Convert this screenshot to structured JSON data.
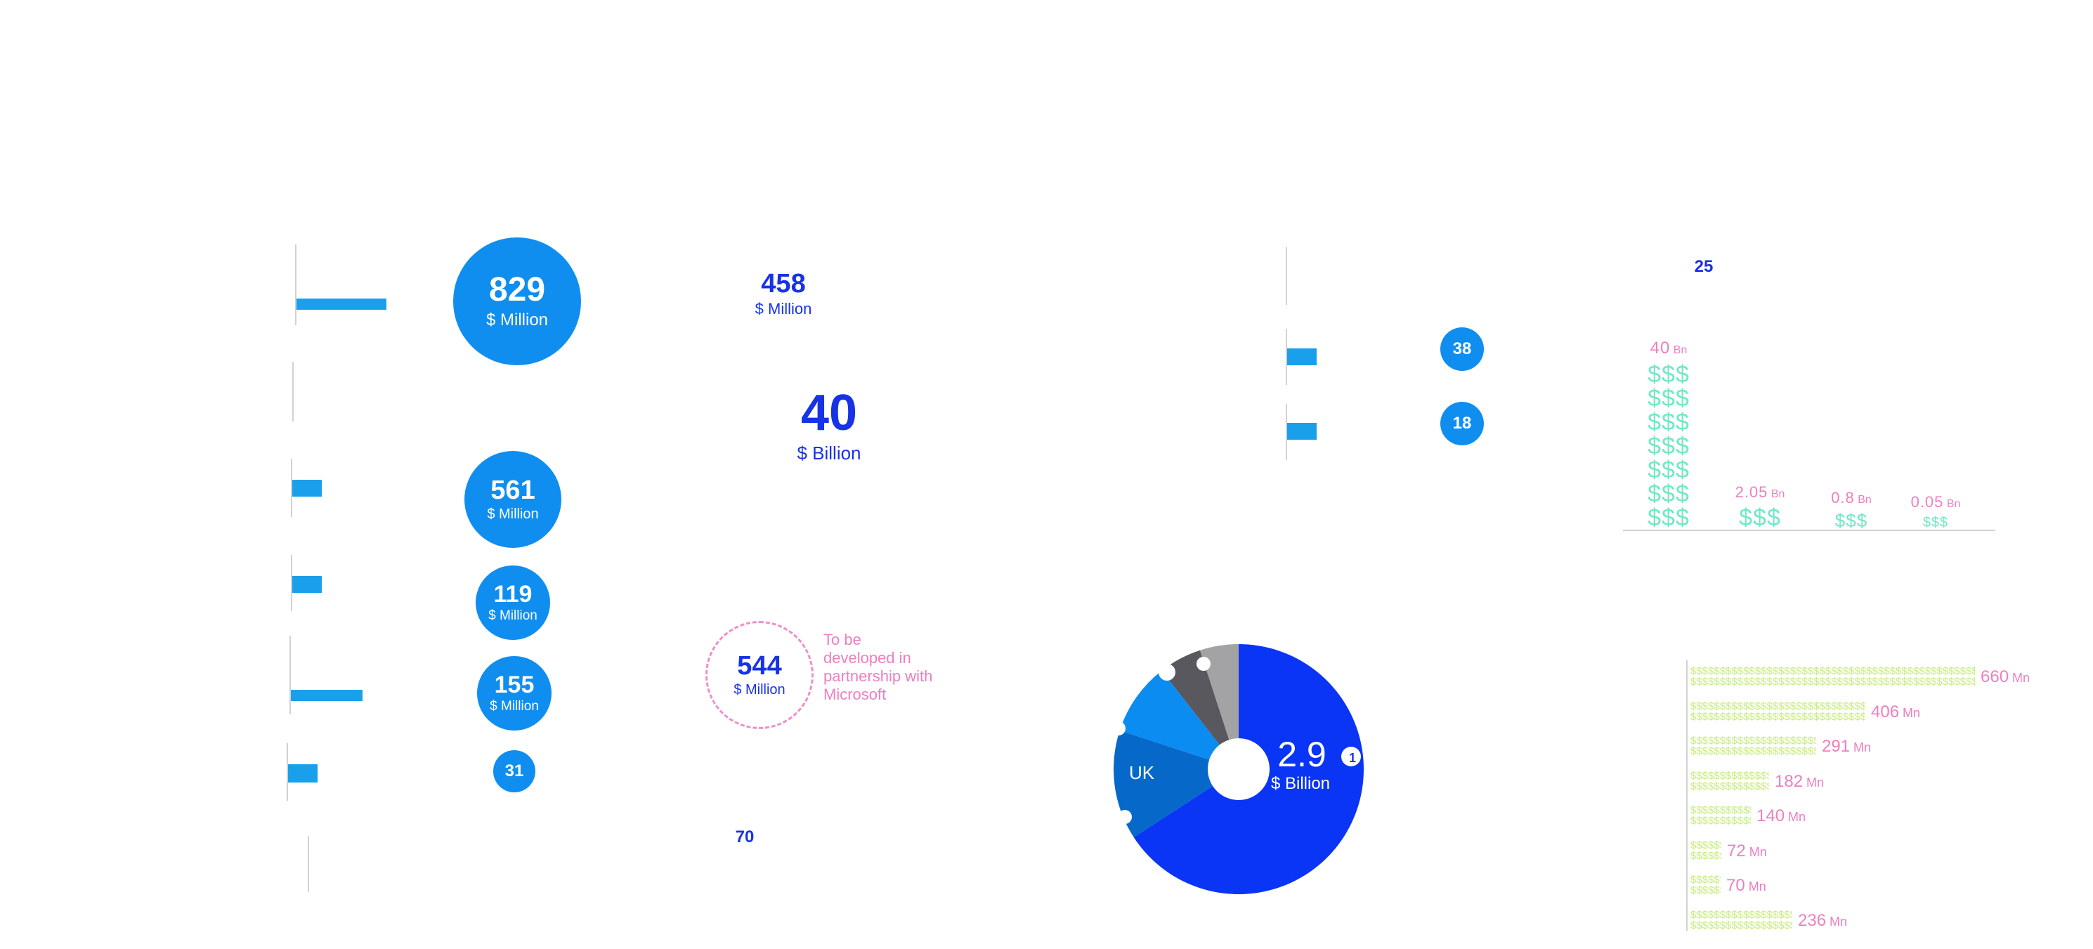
{
  "colors": {
    "bar": "#1aa0ea",
    "circle": "#0f8ef0",
    "blue_text": "#1733e6",
    "pink": "#ee7fc0",
    "teal": "#6fe8c6",
    "lime": "#c6ee7c",
    "donut_main": "#0a35f5",
    "donut_uk": "#0668c8",
    "donut_light": "#0b8cf0",
    "donut_dark": "#58585e",
    "donut_grey": "#a3a3a6"
  },
  "left_column": {
    "circles": [
      {
        "value": "829",
        "unit": "$ Million"
      },
      {
        "value": "561",
        "unit": "$ Million"
      },
      {
        "value": "119",
        "unit": "$ Million"
      },
      {
        "value": "155",
        "unit": "$ Million"
      },
      {
        "value": "31",
        "unit": ""
      }
    ]
  },
  "middle_column": {
    "stat_458": {
      "value": "458",
      "unit": "$ Million"
    },
    "stat_40": {
      "value": "40",
      "unit": "$ Billion"
    },
    "stat_544": {
      "value": "544",
      "unit": "$ Million",
      "note": "To be developed in partnership with Microsoft"
    },
    "stat_70": {
      "value": "70"
    }
  },
  "top_right": {
    "circles": [
      {
        "value": "38"
      },
      {
        "value": "18"
      }
    ],
    "label_25": "25"
  },
  "donut": {
    "value": "2.9",
    "unit": "$ Billion",
    "uk_label": "UK",
    "edge_label": "1"
  },
  "chart_data": [
    {
      "type": "bar",
      "title": "",
      "categories": [
        "",
        "",
        "",
        ""
      ],
      "values": [
        40,
        2.05,
        0.8,
        0.05
      ],
      "value_labels": [
        "40",
        "2.05",
        "0.8",
        "0.05"
      ],
      "unit": "Bn",
      "glyph": "$$$"
    },
    {
      "type": "bar",
      "orientation": "horizontal",
      "title": "",
      "categories": [
        "",
        "",
        "",
        "",
        "",
        "",
        "",
        ""
      ],
      "values": [
        660,
        406,
        291,
        182,
        140,
        72,
        70,
        236
      ],
      "value_labels": [
        "660",
        "406",
        "291",
        "182",
        "140",
        "72",
        "70",
        "236"
      ],
      "unit": "Mn",
      "glyph": "$"
    }
  ]
}
